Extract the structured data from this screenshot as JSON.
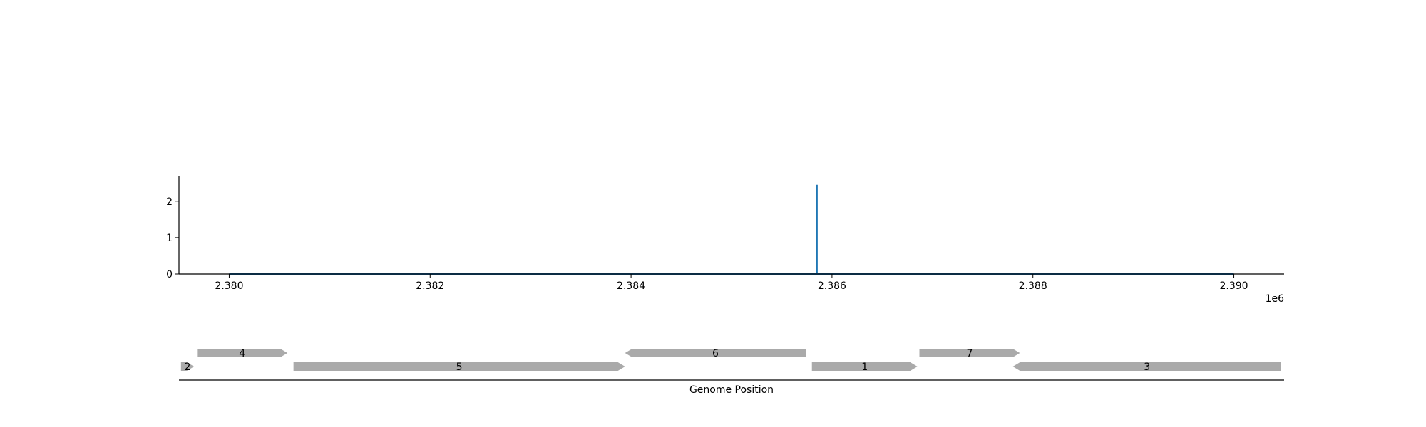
{
  "chart_data": [
    {
      "type": "line",
      "title": "",
      "xlabel": "",
      "ylabel": "",
      "x_tick_labels": [
        "2.380",
        "2.382",
        "2.384",
        "2.386",
        "2.388",
        "2.390"
      ],
      "x_ticks": [
        2380000,
        2382000,
        2384000,
        2386000,
        2388000,
        2390000
      ],
      "x_offset_label": "1e6",
      "y_tick_labels": [
        "0",
        "1",
        "2"
      ],
      "y_ticks": [
        0,
        1,
        2
      ],
      "xlim": [
        2379500,
        2390500
      ],
      "ylim": [
        0,
        2.7
      ],
      "grid": false,
      "color": "#1f77b4",
      "series": [
        {
          "x": [
            2380000,
            2385850,
            2385850,
            2385850,
            2390000
          ],
          "values": [
            0,
            0,
            2.45,
            0,
            0
          ]
        }
      ]
    },
    {
      "type": "gene_map",
      "xlabel": "Genome Position",
      "xlim": [
        2379500,
        2390500
      ],
      "color": "#aaaaaa",
      "genes": [
        {
          "label": "1",
          "start": 2385800,
          "end": 2386850,
          "strand": "+",
          "row": 0
        },
        {
          "label": "2",
          "start": 2379520,
          "end": 2379650,
          "strand": "+",
          "row": 0
        },
        {
          "label": "3",
          "start": 2387800,
          "end": 2390470,
          "strand": "-",
          "row": 0
        },
        {
          "label": "4",
          "start": 2379680,
          "end": 2380580,
          "strand": "+",
          "row": 1
        },
        {
          "label": "5",
          "start": 2380640,
          "end": 2383940,
          "strand": "+",
          "row": 0
        },
        {
          "label": "6",
          "start": 2383940,
          "end": 2385740,
          "strand": "-",
          "row": 1
        },
        {
          "label": "7",
          "start": 2386870,
          "end": 2387870,
          "strand": "+",
          "row": 1
        }
      ]
    }
  ]
}
